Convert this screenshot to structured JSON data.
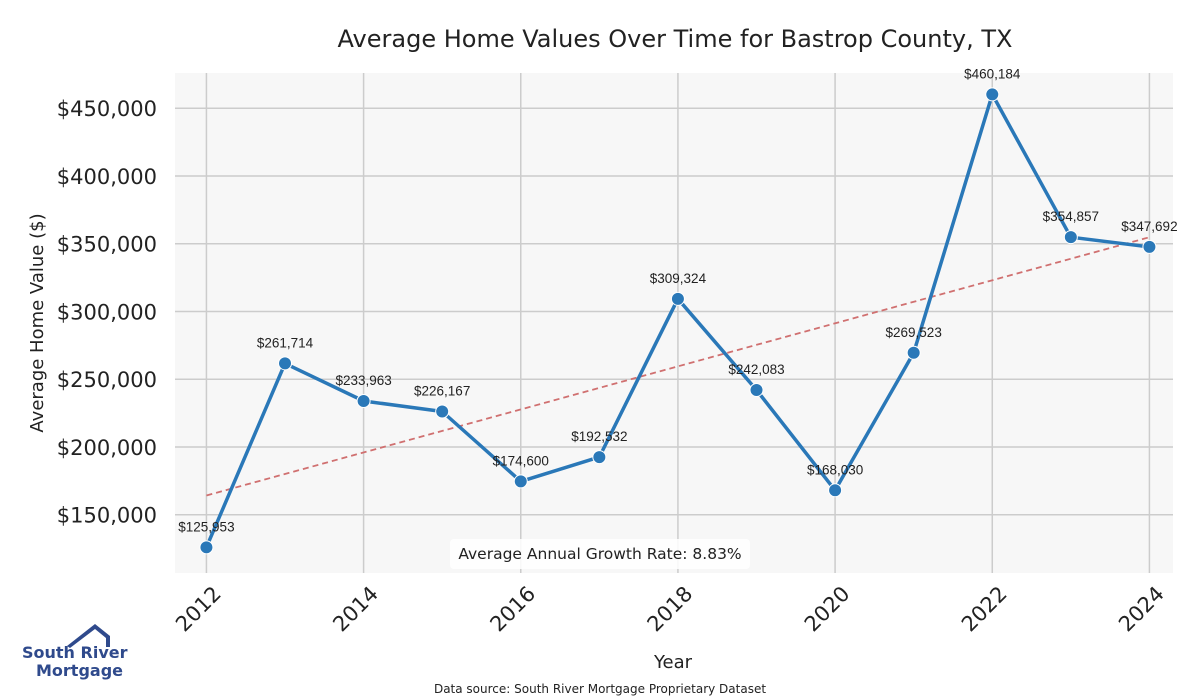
{
  "chart_data": {
    "type": "line",
    "title": "Average Home Values Over Time for Bastrop County, TX",
    "xlabel": "Year",
    "ylabel": "Average Home Value ($)",
    "x": [
      2012,
      2013,
      2014,
      2015,
      2016,
      2017,
      2018,
      2019,
      2020,
      2021,
      2022,
      2023,
      2024
    ],
    "values": [
      125953,
      261714,
      233963,
      226167,
      174600,
      192532,
      309324,
      242083,
      168030,
      269523,
      460184,
      354857,
      347692
    ],
    "data_labels": [
      "$125,953",
      "$261,714",
      "$233,963",
      "$226,167",
      "$174,600",
      "$192,532",
      "$309,324",
      "$242,083",
      "$168,030",
      "$269,523",
      "$460,184",
      "$354,857",
      "$347,692"
    ],
    "x_ticks": [
      "2012",
      "2014",
      "2016",
      "2018",
      "2020",
      "2022",
      "2024"
    ],
    "y_ticks": [
      150000,
      200000,
      250000,
      300000,
      350000,
      400000,
      450000
    ],
    "y_tick_labels": [
      "$150,000",
      "$200,000",
      "$250,000",
      "$300,000",
      "$350,000",
      "$400,000",
      "$450,000"
    ],
    "ylim": [
      107000,
      476000
    ],
    "xlim": [
      2011.6,
      2024.3
    ],
    "trendline": {
      "start": [
        2012,
        164200
      ],
      "end": [
        2024,
        354800
      ],
      "style": "dashed",
      "color": "#d07070"
    },
    "line_color": "#2a78b8",
    "grid": true
  },
  "annotation": {
    "growth_rate": "Average Annual Growth Rate: 8.83%"
  },
  "footer": {
    "source": "Data source: South River Mortgage Proprietary Dataset"
  },
  "logo": {
    "line1": "South River",
    "line2": "Mortgage",
    "color": "#2f4a8c"
  }
}
